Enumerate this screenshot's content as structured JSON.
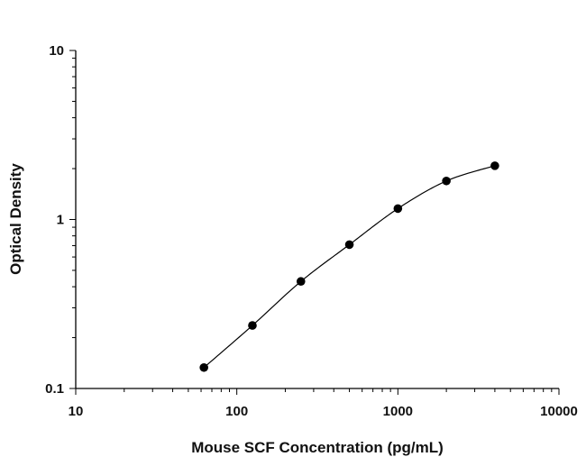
{
  "chart_data": {
    "type": "scatter",
    "title": "",
    "xlabel": "Mouse SCF Concentration (pg/mL)",
    "ylabel": "Optical Density",
    "x_scale": "log",
    "y_scale": "log",
    "xlim": [
      10,
      10000
    ],
    "ylim": [
      0.1,
      10
    ],
    "x_ticks": [
      10,
      100,
      1000,
      10000
    ],
    "x_tick_labels": [
      "10",
      "100",
      "1000",
      "10000"
    ],
    "y_ticks": [
      0.1,
      1,
      10
    ],
    "y_tick_labels": [
      "0.1",
      "1",
      "10"
    ],
    "grid": false,
    "legend": "none",
    "series": [
      {
        "points": [
          {
            "x": 62.5,
            "y": 0.133
          },
          {
            "x": 125,
            "y": 0.236
          },
          {
            "x": 250,
            "y": 0.43
          },
          {
            "x": 500,
            "y": 0.71
          },
          {
            "x": 1000,
            "y": 1.16
          },
          {
            "x": 2000,
            "y": 1.69
          },
          {
            "x": 4000,
            "y": 2.08
          }
        ],
        "fit_curve": true
      }
    ],
    "colors": {
      "marker": "#000000",
      "curve": "#000000",
      "axis": "#000000"
    }
  }
}
